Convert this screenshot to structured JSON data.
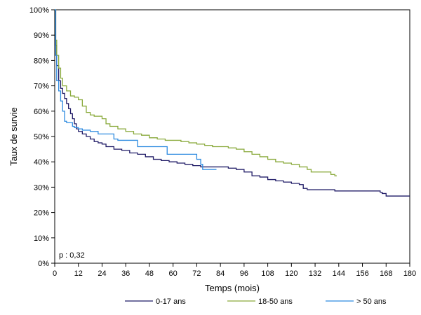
{
  "chart_data": {
    "type": "line",
    "xlabel": "Temps (mois)",
    "ylabel": "Taux de survie",
    "xlim": [
      0,
      180
    ],
    "ylim": [
      0,
      100
    ],
    "x_ticks": [
      0,
      12,
      24,
      36,
      48,
      60,
      72,
      84,
      96,
      108,
      120,
      132,
      144,
      156,
      168,
      180
    ],
    "x_tick_labels": [
      "0",
      "12",
      "24",
      "36",
      "48",
      "60",
      "72",
      "84",
      "96",
      "108",
      "120",
      "132",
      "144",
      "156",
      "168",
      "180"
    ],
    "y_ticks": [
      0,
      10,
      20,
      30,
      40,
      50,
      60,
      70,
      80,
      90,
      100
    ],
    "y_tick_labels": [
      "0%",
      "10%",
      "20%",
      "30%",
      "40%",
      "50%",
      "60%",
      "70%",
      "80%",
      "90%",
      "100%"
    ],
    "grid": false,
    "legend_position": "bottom",
    "annotation": "p : 0,32",
    "series": [
      {
        "name": "0-17 ans",
        "color": "#1f1a66",
        "points": [
          [
            0,
            100
          ],
          [
            0.5,
            86
          ],
          [
            1,
            78
          ],
          [
            2,
            72
          ],
          [
            3,
            69
          ],
          [
            4,
            67
          ],
          [
            5,
            65
          ],
          [
            6,
            63
          ],
          [
            7,
            61
          ],
          [
            8,
            59
          ],
          [
            9,
            57
          ],
          [
            10,
            55
          ],
          [
            11,
            53
          ],
          [
            12,
            52
          ],
          [
            14,
            51
          ],
          [
            16,
            50
          ],
          [
            18,
            49
          ],
          [
            20,
            48
          ],
          [
            22,
            47.5
          ],
          [
            24,
            47
          ],
          [
            26,
            46
          ],
          [
            30,
            45
          ],
          [
            34,
            44.5
          ],
          [
            38,
            43.5
          ],
          [
            42,
            43
          ],
          [
            46,
            42
          ],
          [
            50,
            41
          ],
          [
            54,
            40.5
          ],
          [
            58,
            40
          ],
          [
            62,
            39.5
          ],
          [
            66,
            39
          ],
          [
            70,
            38.5
          ],
          [
            74,
            38
          ],
          [
            78,
            38
          ],
          [
            84,
            38
          ],
          [
            88,
            37.5
          ],
          [
            92,
            37
          ],
          [
            96,
            36
          ],
          [
            100,
            34.5
          ],
          [
            104,
            34
          ],
          [
            108,
            33
          ],
          [
            112,
            32.5
          ],
          [
            116,
            32
          ],
          [
            120,
            31.5
          ],
          [
            124,
            31
          ],
          [
            126,
            29.5
          ],
          [
            128,
            29
          ],
          [
            132,
            29
          ],
          [
            138,
            29
          ],
          [
            141,
            29
          ],
          [
            142,
            28.5
          ],
          [
            150,
            28.5
          ],
          [
            160,
            28.5
          ],
          [
            165,
            28
          ],
          [
            166,
            27.5
          ],
          [
            168,
            26.5
          ],
          [
            172,
            26.5
          ],
          [
            180,
            26.5
          ]
        ]
      },
      {
        "name": "18-50 ans",
        "color": "#8aaa3c",
        "points": [
          [
            0,
            100
          ],
          [
            0.5,
            88
          ],
          [
            1,
            82
          ],
          [
            2,
            77
          ],
          [
            3,
            73
          ],
          [
            4,
            70
          ],
          [
            6,
            68
          ],
          [
            8,
            66
          ],
          [
            10,
            65.5
          ],
          [
            12,
            64.5
          ],
          [
            14,
            62
          ],
          [
            16,
            59.5
          ],
          [
            18,
            58.5
          ],
          [
            20,
            58
          ],
          [
            24,
            57
          ],
          [
            26,
            55
          ],
          [
            28,
            54
          ],
          [
            32,
            53
          ],
          [
            36,
            52
          ],
          [
            40,
            51
          ],
          [
            44,
            50.5
          ],
          [
            48,
            49.5
          ],
          [
            52,
            49
          ],
          [
            56,
            48.5
          ],
          [
            60,
            48.5
          ],
          [
            64,
            48
          ],
          [
            68,
            47.5
          ],
          [
            72,
            47
          ],
          [
            76,
            46.5
          ],
          [
            80,
            46
          ],
          [
            84,
            46
          ],
          [
            88,
            45.5
          ],
          [
            92,
            45
          ],
          [
            96,
            44
          ],
          [
            100,
            43
          ],
          [
            104,
            42
          ],
          [
            108,
            41
          ],
          [
            112,
            40
          ],
          [
            116,
            39.5
          ],
          [
            120,
            39
          ],
          [
            124,
            38
          ],
          [
            128,
            37
          ],
          [
            130,
            36
          ],
          [
            134,
            36
          ],
          [
            138,
            36
          ],
          [
            140,
            35
          ],
          [
            142,
            34.5
          ],
          [
            143,
            34.5
          ]
        ]
      },
      {
        "name": "> 50 ans",
        "color": "#2e8be0",
        "points": [
          [
            0,
            100
          ],
          [
            0.5,
            82
          ],
          [
            1,
            72
          ],
          [
            2,
            68
          ],
          [
            3,
            64
          ],
          [
            4,
            60
          ],
          [
            5,
            56
          ],
          [
            6,
            55.5
          ],
          [
            8,
            55.5
          ],
          [
            9,
            54
          ],
          [
            10,
            53.5
          ],
          [
            12,
            53
          ],
          [
            14,
            52.5
          ],
          [
            18,
            52
          ],
          [
            22,
            51
          ],
          [
            28,
            51
          ],
          [
            30,
            49
          ],
          [
            32,
            48.5
          ],
          [
            36,
            48.5
          ],
          [
            40,
            48.5
          ],
          [
            42,
            46
          ],
          [
            48,
            46
          ],
          [
            52,
            46
          ],
          [
            56,
            46
          ],
          [
            57,
            43
          ],
          [
            60,
            43
          ],
          [
            68,
            43
          ],
          [
            72,
            41
          ],
          [
            74,
            39
          ],
          [
            75,
            37
          ],
          [
            78,
            37
          ],
          [
            82,
            37
          ]
        ]
      }
    ]
  }
}
